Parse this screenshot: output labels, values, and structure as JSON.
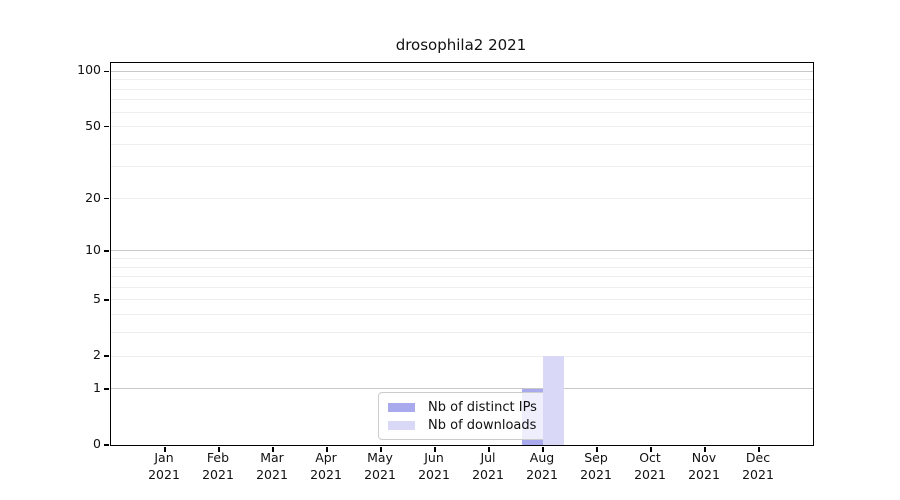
{
  "chart_data": {
    "type": "bar",
    "title": "drosophila2 2021",
    "scale": "log1p",
    "categories": [
      "Jan",
      "Feb",
      "Mar",
      "Apr",
      "May",
      "Jun",
      "Jul",
      "Aug",
      "Sep",
      "Oct",
      "Nov",
      "Dec"
    ],
    "year": "2021",
    "series": [
      {
        "name": "Nb of distinct IPs",
        "color": "#a9a9ee",
        "values": [
          0,
          0,
          0,
          0,
          0,
          0,
          0,
          1,
          0,
          0,
          0,
          0
        ]
      },
      {
        "name": "Nb of downloads",
        "color": "#d9d9f7",
        "values": [
          0,
          0,
          0,
          0,
          0,
          0,
          0,
          2,
          0,
          0,
          0,
          0
        ]
      }
    ],
    "y_ticks": [
      0,
      1,
      2,
      5,
      10,
      20,
      50,
      100
    ],
    "y_major_gridlines": [
      1,
      10,
      100
    ],
    "y_minor_gridlines": [
      2,
      3,
      4,
      5,
      6,
      7,
      8,
      9,
      20,
      30,
      40,
      50,
      60,
      70,
      80,
      90
    ],
    "ylim": [
      0,
      111
    ],
    "grid": "horizontal",
    "legend_position": "lower center",
    "colors": {
      "major_grid": "#c8c8c8",
      "minor_grid": "#eeeeee",
      "spine": "#000000",
      "background": "#ffffff"
    }
  }
}
